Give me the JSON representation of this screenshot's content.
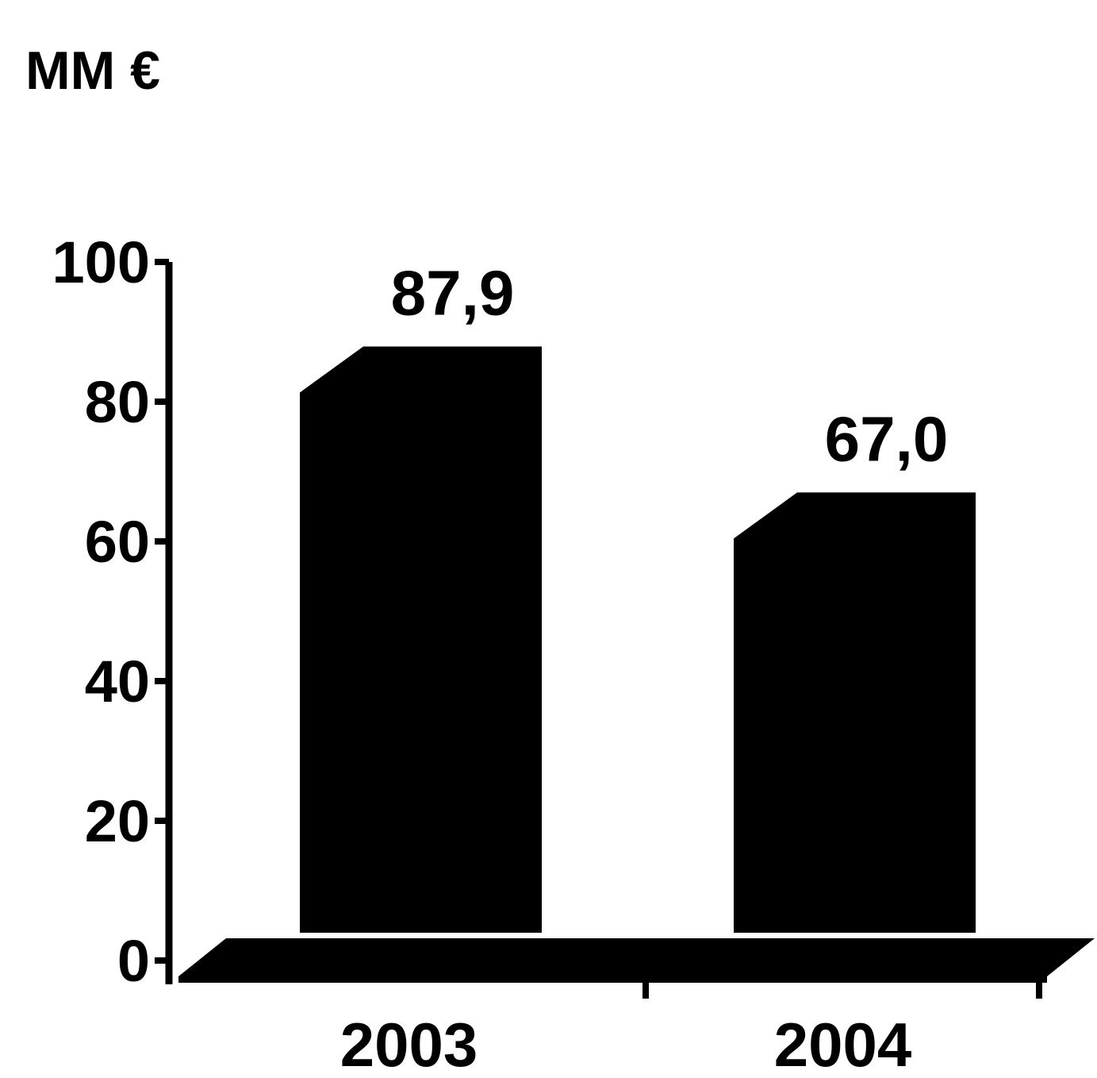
{
  "chart_data": {
    "type": "bar",
    "unit_label": "MM €",
    "categories": [
      "2003",
      "2004"
    ],
    "values": [
      87.9,
      67.0
    ],
    "value_labels": [
      "87,9",
      "67,0"
    ],
    "yticks": [
      "0",
      "20",
      "40",
      "60",
      "80",
      "100"
    ],
    "ylim": [
      0,
      100
    ],
    "grid": false,
    "style": "3d",
    "colors": {
      "bar": "#000000",
      "axis": "#000000",
      "background": "#ffffff"
    }
  }
}
